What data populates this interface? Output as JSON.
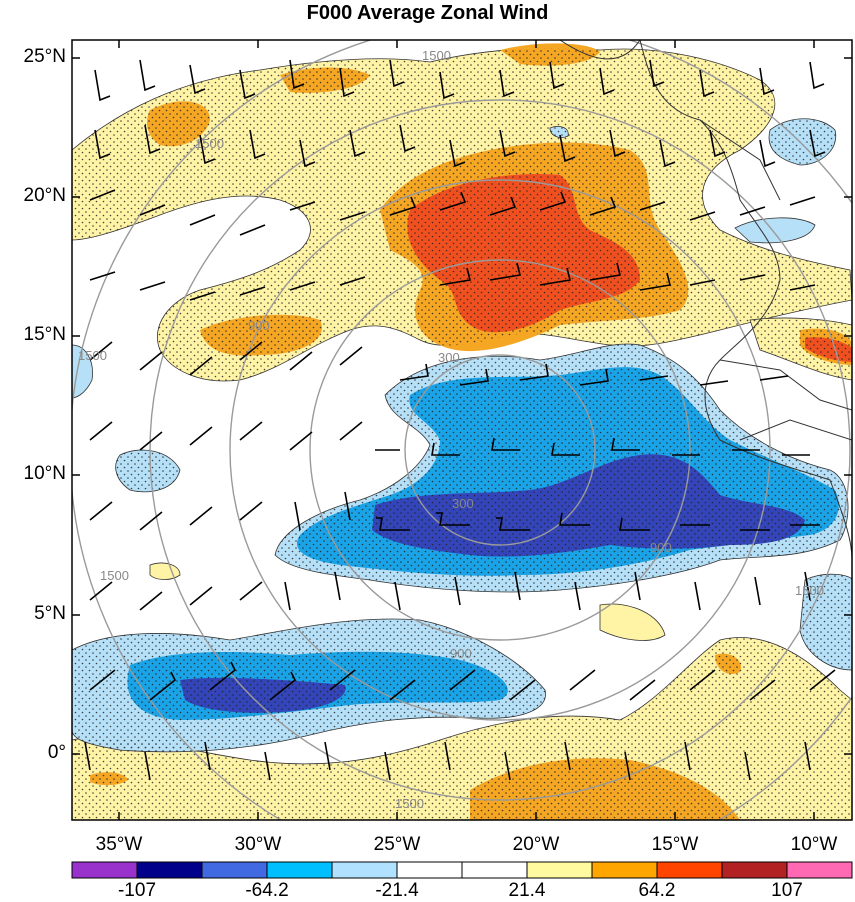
{
  "title": "F000 Average Zonal Wind",
  "lat_labels": [
    "25°N",
    "20°N",
    "15°N",
    "10°N",
    "5°N",
    "0°"
  ],
  "lon_labels": [
    "35°W",
    "30°W",
    "25°W",
    "20°W",
    "15°W",
    "10°W"
  ],
  "range_ring_labels": [
    "300",
    "300",
    "900",
    "900",
    "900",
    "1500",
    "1500",
    "1500",
    "1500",
    "1500",
    "1500"
  ],
  "colorbar": {
    "labels": [
      "-107",
      "-64.2",
      "-21.4",
      "21.4",
      "64.2",
      "107"
    ],
    "colors": [
      "#9932cc",
      "#00008b",
      "#4169e1",
      "#00bfff",
      "#b0e2ff",
      "#ffffff",
      "#ffffff",
      "#fffaa0",
      "#ffa500",
      "#ff4500",
      "#b22222",
      "#ff69b4"
    ]
  },
  "fill_colors": {
    "light_yellow": "#fff3a6",
    "orange": "#f5a623",
    "red_orange": "#f05020",
    "light_blue": "#b6e0f7",
    "blue": "#1aa3e6",
    "dark_blue": "#3345b8"
  }
}
